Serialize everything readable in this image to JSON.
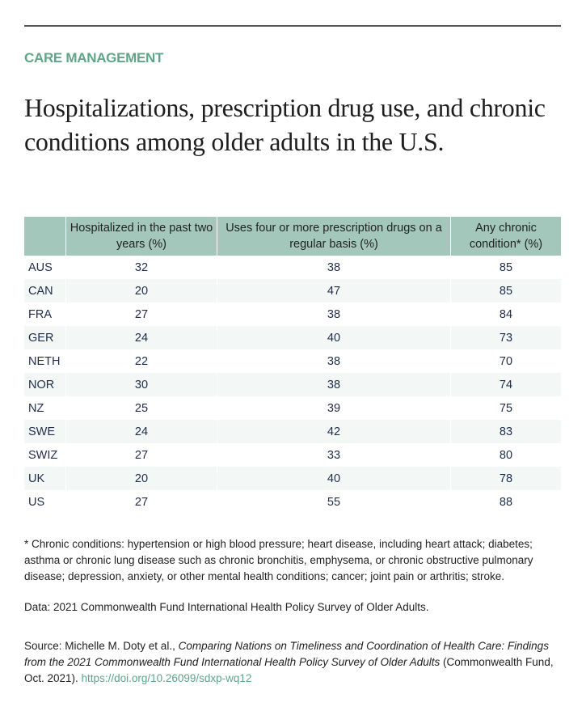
{
  "category": "CARE MANAGEMENT",
  "title": "Hospitalizations, prescription drug use, and chronic conditions among older adults in the U.S.",
  "table": {
    "headers": [
      "",
      "Hospitalized in the past two years (%)",
      "Uses four or more prescription drugs on a regular basis (%)",
      "Any chronic condition* (%)"
    ],
    "rows": [
      [
        "AUS",
        "32",
        "38",
        "85"
      ],
      [
        "CAN",
        "20",
        "47",
        "85"
      ],
      [
        "FRA",
        "27",
        "38",
        "84"
      ],
      [
        "GER",
        "24",
        "40",
        "73"
      ],
      [
        "NETH",
        "22",
        "38",
        "70"
      ],
      [
        "NOR",
        "30",
        "38",
        "74"
      ],
      [
        "NZ",
        "25",
        "39",
        "75"
      ],
      [
        "SWE",
        "24",
        "42",
        "83"
      ],
      [
        "SWIZ",
        "27",
        "33",
        "80"
      ],
      [
        "UK",
        "20",
        "40",
        "78"
      ],
      [
        "US",
        "27",
        "55",
        "88"
      ]
    ]
  },
  "footnote": "* Chronic conditions: hypertension or high blood pressure; heart disease, including heart attack; diabetes; asthma or chronic lung disease such as chronic bronchitis, emphysema, or chronic obstructive pulmonary disease; depression, anxiety, or other mental health conditions; cancer; joint pain or arthritis; stroke.",
  "data_note": "Data: 2021 Commonwealth Fund International Health Policy Survey of Older Adults.",
  "source": {
    "prefix": "Source: Michelle M. Doty et al., ",
    "title": "Comparing Nations on Timeliness and Coordination of Health Care: Findings from the 2021 Commonwealth Fund International Health Policy Survey of Older Adults",
    "suffix": " (Commonwealth Fund, Oct. 2021). ",
    "link": "https://doi.org/10.26099/sdxp-wq12"
  },
  "colors": {
    "accent": "#5fa589",
    "header_bg": "#a3c7bb",
    "alt_row": "#f3f7f6"
  }
}
